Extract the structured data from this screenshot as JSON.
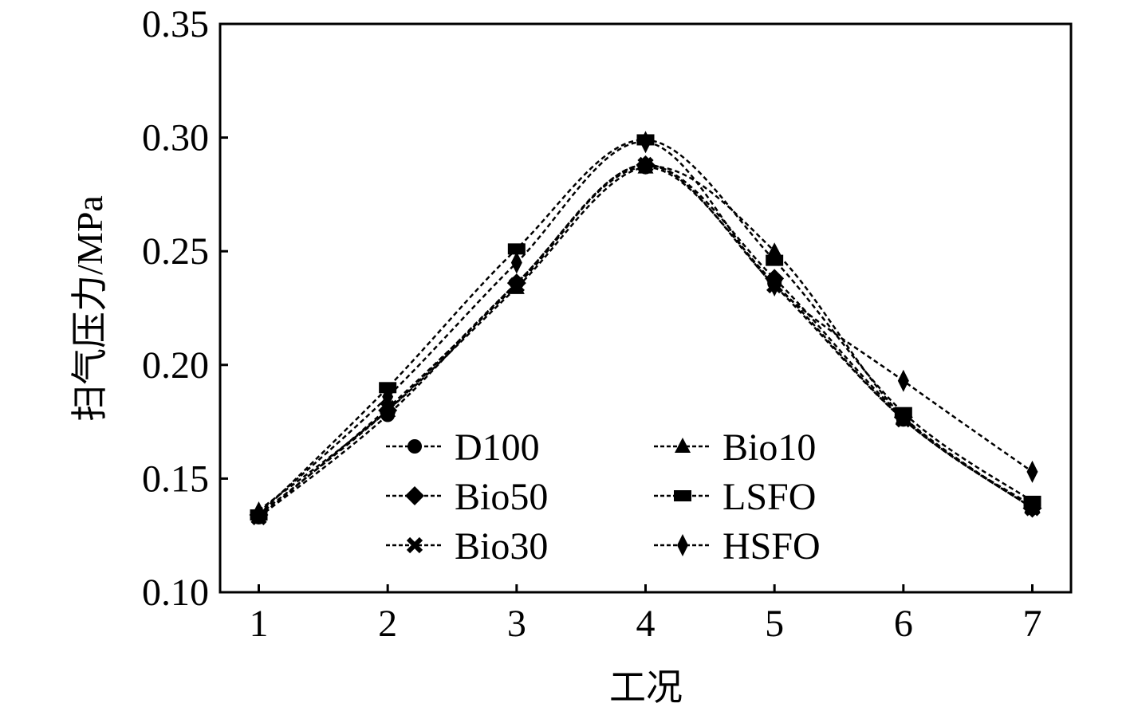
{
  "chart_data": {
    "type": "line",
    "title": "",
    "xlabel": "工况",
    "ylabel": "扫气压力/MPa",
    "x": [
      1,
      2,
      3,
      4,
      5,
      6,
      7
    ],
    "xticks": [
      "1",
      "2",
      "3",
      "4",
      "5",
      "6",
      "7"
    ],
    "yticks": [
      "0.10",
      "0.15",
      "0.20",
      "0.25",
      "0.30",
      "0.35"
    ],
    "ylim": [
      0.1,
      0.35
    ],
    "xlim": [
      0.7,
      7.3
    ],
    "grid": false,
    "legend_position": "bottom-center",
    "series": [
      {
        "name": "D100",
        "marker": "circle",
        "values": [
          0.133,
          0.178,
          0.236,
          0.287,
          0.236,
          0.176,
          0.137
        ]
      },
      {
        "name": "Bio10",
        "marker": "triangle",
        "values": [
          0.136,
          0.18,
          0.234,
          0.287,
          0.25,
          0.177,
          0.138
        ]
      },
      {
        "name": "Bio50",
        "marker": "diamond",
        "values": [
          0.134,
          0.18,
          0.236,
          0.288,
          0.238,
          0.177,
          0.137
        ]
      },
      {
        "name": "LSFO",
        "marker": "square",
        "values": [
          0.134,
          0.19,
          0.251,
          0.299,
          0.246,
          0.179,
          0.14
        ]
      },
      {
        "name": "Bio30",
        "marker": "x",
        "values": [
          0.133,
          0.181,
          0.235,
          0.288,
          0.235,
          0.176,
          0.137
        ]
      },
      {
        "name": "HSFO",
        "marker": "thin-diamond",
        "values": [
          0.135,
          0.186,
          0.245,
          0.298,
          0.235,
          0.193,
          0.153
        ]
      }
    ]
  }
}
